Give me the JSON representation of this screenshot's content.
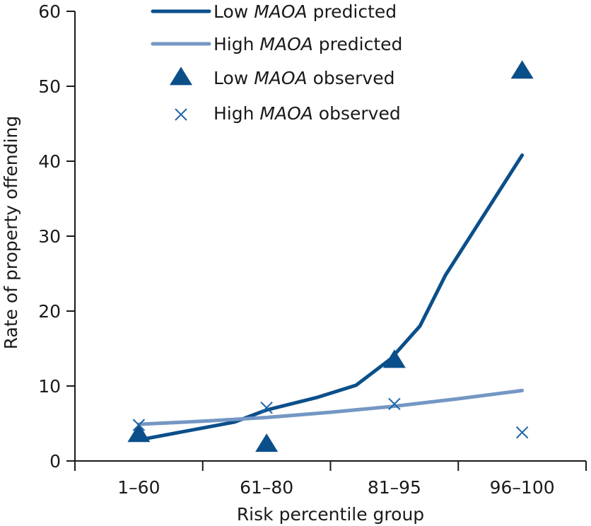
{
  "chart_data": {
    "type": "line",
    "title": "",
    "xlabel": "Risk percentile group",
    "ylabel": "Rate of property offending",
    "ylim": [
      0,
      60
    ],
    "yticks": [
      0,
      10,
      20,
      30,
      40,
      50,
      60
    ],
    "categories": [
      "1–60",
      "61–80",
      "81–95",
      "96–100"
    ],
    "x_range": [
      0.5,
      4.5
    ],
    "series": [
      {
        "name": "Low MAOA predicted",
        "kind": "line",
        "color": "#0b4f8a",
        "x": [
          1.0,
          1.75,
          2.0,
          2.4,
          2.7,
          2.97,
          3.2,
          3.4,
          4.0
        ],
        "y": [
          2.8,
          5.2,
          6.8,
          8.5,
          10.1,
          13.6,
          18.0,
          24.8,
          40.8
        ]
      },
      {
        "name": "High MAOA predicted",
        "kind": "line",
        "color": "#7497c4",
        "x": [
          1.0,
          1.5,
          2.0,
          2.5,
          3.0,
          3.5,
          4.0
        ],
        "y": [
          4.9,
          5.3,
          5.8,
          6.5,
          7.3,
          8.3,
          9.4
        ]
      },
      {
        "name": "Low MAOA observed",
        "kind": "triangle",
        "color": "#0b4f8a",
        "x": [
          1,
          2,
          3,
          4
        ],
        "y": [
          3.5,
          2.2,
          13.4,
          52.0
        ]
      },
      {
        "name": "High MAOA observed",
        "kind": "cross",
        "color": "#1d63a5",
        "x": [
          1,
          2,
          3,
          4
        ],
        "y": [
          4.8,
          7.1,
          7.6,
          3.8
        ]
      }
    ],
    "legend": {
      "placement": "top-left",
      "entries": [
        {
          "pre": "Low ",
          "italic": "MAOA",
          "post": " predicted"
        },
        {
          "pre": "High ",
          "italic": "MAOA",
          "post": " predicted"
        },
        {
          "pre": "Low ",
          "italic": "MAOA",
          "post": " observed"
        },
        {
          "pre": "High ",
          "italic": "MAOA",
          "post": " observed"
        }
      ]
    }
  }
}
